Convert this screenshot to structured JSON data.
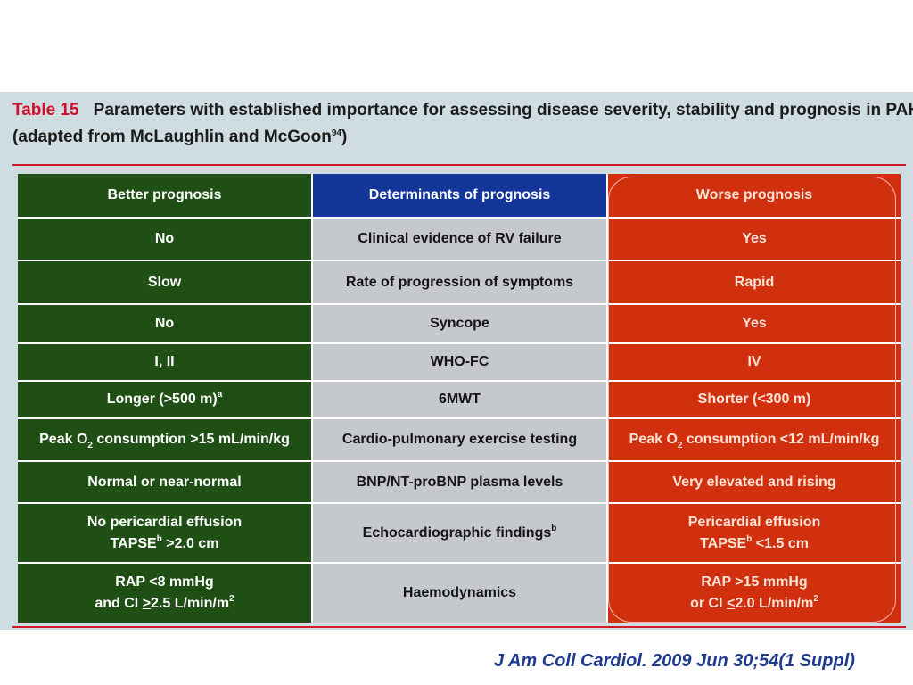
{
  "table": {
    "label": "Table 15",
    "title": "Parameters with established importance for assessing disease severity, stability and prognosis in PAH",
    "subtitle_pre": "(adapted from McLaughlin and McGoon",
    "subtitle_ref": "94",
    "subtitle_post": ")",
    "headers": {
      "better": "Better prognosis",
      "determinant": "Determinants of prognosis",
      "worse": "Worse prognosis"
    },
    "rows": [
      {
        "better": "No",
        "determinant": "Clinical evidence of RV failure",
        "worse": "Yes"
      },
      {
        "better": "Slow",
        "determinant": "Rate of progression of symptoms",
        "worse": "Rapid"
      },
      {
        "better": "No",
        "determinant": "Syncope",
        "worse": "Yes"
      },
      {
        "better": "I, II",
        "determinant": "WHO-FC",
        "worse": "IV"
      },
      {
        "better": "Longer (>500 m)",
        "better_sup": "a",
        "determinant": "6MWT",
        "worse": "Shorter (<300 m)"
      },
      {
        "better_pre": "Peak O",
        "better_sub": "2",
        "better_post": " consumption >15 mL/min/kg",
        "determinant": "Cardio-pulmonary exercise testing",
        "worse_pre": "Peak O",
        "worse_sub": "2",
        "worse_post": " consumption <12 mL/min/kg"
      },
      {
        "better": "Normal or near-normal",
        "determinant": "BNP/NT-proBNP plasma levels",
        "worse": "Very elevated and rising"
      },
      {
        "better_l1": "No pericardial effusion",
        "better_l2_pre": "TAPSE",
        "better_l2_sup": "b",
        "better_l2_post": " >2.0 cm",
        "determinant_pre": "Echocardiographic findings",
        "determinant_sup": "b",
        "worse_l1": "Pericardial effusion",
        "worse_l2_pre": "TAPSE",
        "worse_l2_sup": "b",
        "worse_l2_post": " <1.5 cm"
      },
      {
        "better_l1": "RAP <8 mmHg",
        "better_l2_pre": "and CI ",
        "better_l2_ul": ">",
        "better_l2_post": "2.5 L/min/m",
        "better_l2_sup": "2",
        "determinant": "Haemodynamics",
        "worse_l1": "RAP >15 mmHg",
        "worse_l2_pre": "or CI ",
        "worse_l2_ul": "<",
        "worse_l2_post": "2.0 L/min/m",
        "worse_l2_sup": "2"
      }
    ]
  },
  "citation": "J Am Coll Cardiol. 2009 Jun 30;54(1 Suppl)",
  "colors": {
    "better_fill": "#1f4f14",
    "determinant_fill": "#c5c8cc",
    "determinant_header_fill": "#14369a",
    "worse_fill": "#d1300e",
    "accent_red": "#d0102a",
    "citation_blue": "#1f3b8f"
  }
}
